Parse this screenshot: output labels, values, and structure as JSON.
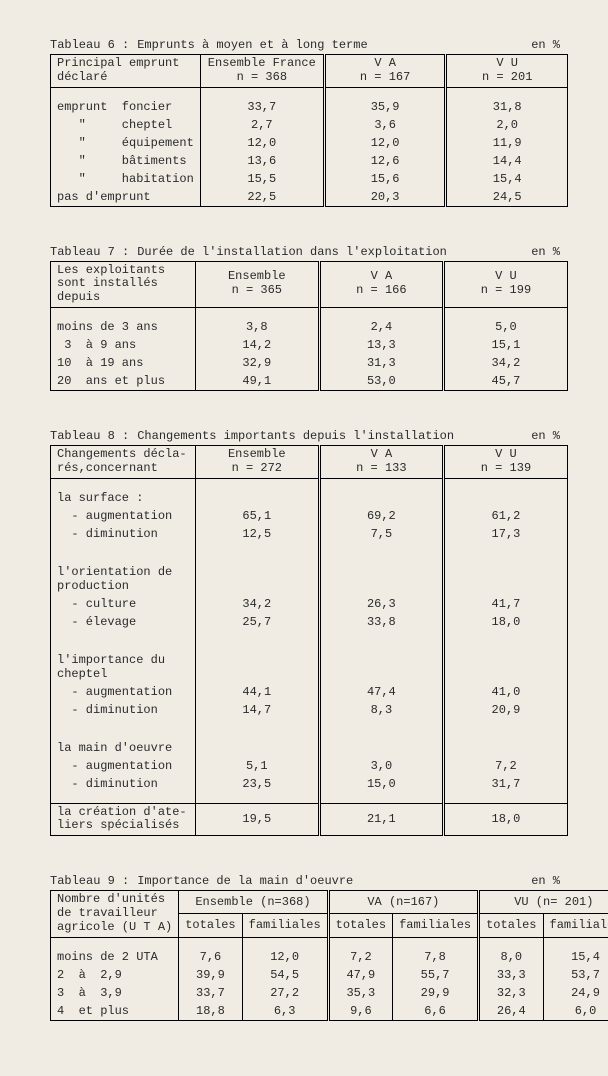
{
  "tableau6": {
    "title_lead": "Tableau 6 :",
    "title_main": "Emprunts à moyen et à long terme",
    "unit": "en %",
    "headers": {
      "c0": "Principal emprunt\ndéclaré",
      "c1": "Ensemble France\nn = 368",
      "c2": "V A\nn = 167",
      "c3": "V U\nn = 201"
    },
    "rows": [
      {
        "l": "emprunt  foncier",
        "a": "33,7",
        "b": "35,9",
        "c": "31,8"
      },
      {
        "l": "   \"     cheptel",
        "a": "2,7",
        "b": "3,6",
        "c": "2,0"
      },
      {
        "l": "   \"     équipement",
        "a": "12,0",
        "b": "12,0",
        "c": "11,9"
      },
      {
        "l": "   \"     bâtiments",
        "a": "13,6",
        "b": "12,6",
        "c": "14,4"
      },
      {
        "l": "   \"     habitation",
        "a": "15,5",
        "b": "15,6",
        "c": "15,4"
      },
      {
        "l": "pas d'emprunt",
        "a": "22,5",
        "b": "20,3",
        "c": "24,5"
      }
    ]
  },
  "tableau7": {
    "title_lead": "Tableau 7 :",
    "title_main": "Durée de l'installation dans l'exploitation",
    "unit": "en %",
    "headers": {
      "c0": "Les exploitants\nsont installés\ndepuis",
      "c1": "Ensemble\nn = 365",
      "c2": "V A\nn = 166",
      "c3": "V U\nn = 199"
    },
    "rows": [
      {
        "l": "moins de 3 ans",
        "a": "3,8",
        "b": "2,4",
        "c": "5,0"
      },
      {
        "l": " 3  à 9 ans",
        "a": "14,2",
        "b": "13,3",
        "c": "15,1"
      },
      {
        "l": "10  à 19 ans",
        "a": "32,9",
        "b": "31,3",
        "c": "34,2"
      },
      {
        "l": "20  ans et plus",
        "a": "49,1",
        "b": "53,0",
        "c": "45,7"
      }
    ]
  },
  "tableau8": {
    "title_lead": "Tableau 8 :",
    "title_main": "Changements importants depuis l'installation",
    "unit": "en %",
    "headers": {
      "c0": "Changements décla-\nrés,concernant",
      "c1": "Ensemble\nn = 272",
      "c2": "V A\nn = 133",
      "c3": "V U\nn = 139"
    },
    "sections": [
      {
        "head": "la surface :",
        "rows": [
          {
            "l": "  - augmentation",
            "a": "65,1",
            "b": "69,2",
            "c": "61,2"
          },
          {
            "l": "  - diminution",
            "a": "12,5",
            "b": "7,5",
            "c": "17,3"
          }
        ]
      },
      {
        "head": "l'orientation de\nproduction",
        "rows": [
          {
            "l": "  - culture",
            "a": "34,2",
            "b": "26,3",
            "c": "41,7"
          },
          {
            "l": "  - élevage",
            "a": "25,7",
            "b": "33,8",
            "c": "18,0"
          }
        ]
      },
      {
        "head": "l'importance du\ncheptel",
        "rows": [
          {
            "l": "  - augmentation",
            "a": "44,1",
            "b": "47,4",
            "c": "41,0"
          },
          {
            "l": "  - diminution",
            "a": "14,7",
            "b": "8,3",
            "c": "20,9"
          }
        ]
      },
      {
        "head": "la main d'oeuvre",
        "rows": [
          {
            "l": "  - augmentation",
            "a": "5,1",
            "b": "3,0",
            "c": "7,2"
          },
          {
            "l": "  - diminution",
            "a": "23,5",
            "b": "15,0",
            "c": "31,7"
          }
        ]
      }
    ],
    "footer": {
      "l": "la création d'ate-\nliers spécialisés",
      "a": "19,5",
      "b": "21,1",
      "c": "18,0"
    }
  },
  "tableau9": {
    "title_lead": "Tableau 9 :",
    "title_main": "Importance de la main d'oeuvre",
    "unit": "en %",
    "headers": {
      "c0": "Nombre d'unités\nde travailleur\nagricole (U T A)",
      "g1": "Ensemble (n=368)",
      "g2": "VA (n=167)",
      "g3": "VU (n= 201)",
      "sub_tot": "totales",
      "sub_fam": "familiales"
    },
    "rows": [
      {
        "l": "moins de 2 UTA",
        "a": "7,6",
        "b": "12,0",
        "c": "7,2",
        "d": "7,8",
        "e": "8,0",
        "f": "15,4"
      },
      {
        "l": "2  à  2,9",
        "a": "39,9",
        "b": "54,5",
        "c": "47,9",
        "d": "55,7",
        "e": "33,3",
        "f": "53,7"
      },
      {
        "l": "3  à  3,9",
        "a": "33,7",
        "b": "27,2",
        "c": "35,3",
        "d": "29,9",
        "e": "32,3",
        "f": "24,9"
      },
      {
        "l": "4  et plus",
        "a": "18,8",
        "b": "6,3",
        "c": "9,6",
        "d": "6,6",
        "e": "26,4",
        "f": "6,0"
      }
    ]
  }
}
